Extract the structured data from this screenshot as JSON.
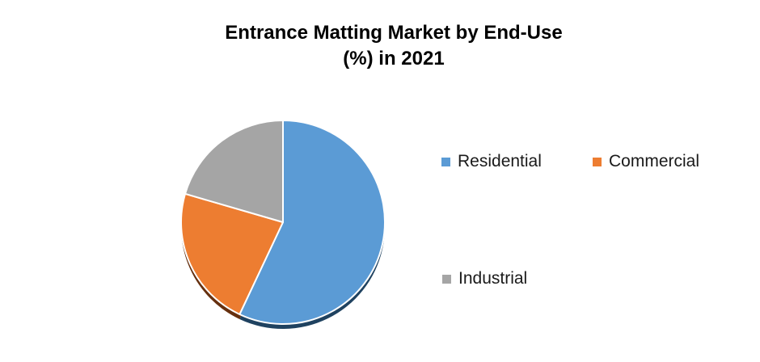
{
  "title": {
    "line1": "Entrance Matting Market by End-Use",
    "line2": "(%) in 2021"
  },
  "chart_data": {
    "type": "pie",
    "title": "Entrance Matting Market by End-Use (%) in 2021",
    "categories": [
      "Residential",
      "Commercial",
      "Industrial"
    ],
    "values": [
      57,
      22.5,
      20.5
    ],
    "unit": "%",
    "colors": [
      "#5B9BD5",
      "#ED7D31",
      "#A5A5A5"
    ],
    "shadow_colors": [
      "#1F4260",
      "#66300F",
      "#6E6E6E"
    ],
    "start_angle_deg": 0,
    "direction": "clockwise",
    "data_labels_shown": false,
    "legend_position": "right",
    "background": "#FFFFFF"
  },
  "legend": {
    "items": [
      {
        "label": "Residential",
        "color": "#5B9BD5"
      },
      {
        "label": "Commercial",
        "color": "#ED7D31"
      },
      {
        "label": "Industrial",
        "color": "#A5A5A5"
      }
    ]
  }
}
